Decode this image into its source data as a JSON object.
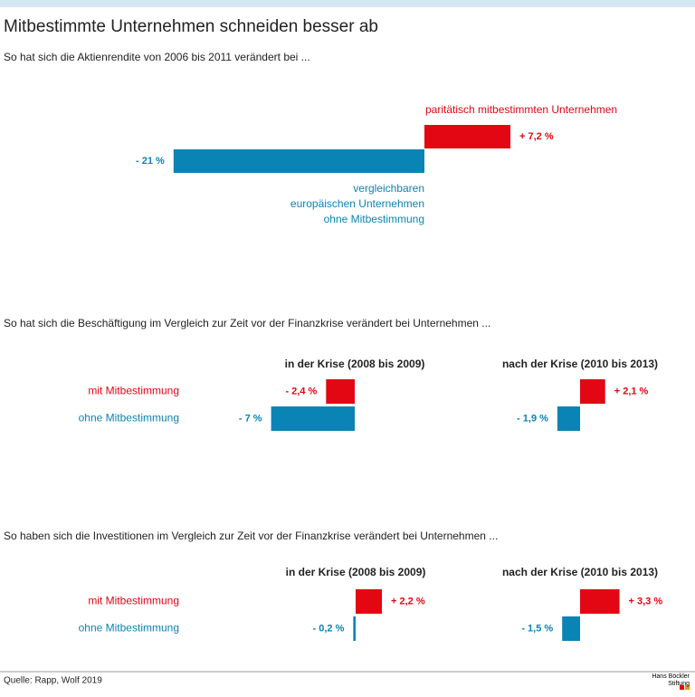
{
  "title": "Mitbestimmte Unternehmen schneiden besser ab",
  "source": "Quelle: Rapp, Wolf 2019",
  "logo": "Hans Böckler\nStiftung",
  "chart_data": [
    {
      "type": "bar",
      "subtitle": "So hat sich die Aktienrendite von 2006 bis 2011 verändert bei ...",
      "categories": [
        "paritätisch mitbestimmten Unternehmen",
        "vergleichbaren\neuropäischen Unternehmen\nohne Mitbestimmung"
      ],
      "values": [
        7.2,
        -21
      ],
      "value_labels": [
        "+ 7,2 %",
        "- 21 %"
      ],
      "colors": [
        "#e30613",
        "#0a84b4"
      ]
    },
    {
      "type": "grouped-bar",
      "subtitle": "So hat sich die Beschäftigung im Vergleich zur Zeit vor der Finanzkrise verändert bei Unternehmen ...",
      "categories": [
        "in der Krise (2008 bis 2009)",
        "nach der Krise (2010 bis 2013)"
      ],
      "series": [
        {
          "name": "mit Mitbestimmung",
          "color": "#e30613",
          "values": [
            -2.4,
            2.1
          ],
          "value_labels": [
            "- 2,4 %",
            "+ 2,1 %"
          ]
        },
        {
          "name": "ohne Mitbestimmung",
          "color": "#0a84b4",
          "values": [
            -7,
            -1.9
          ],
          "value_labels": [
            "- 7 %",
            "- 1,9 %"
          ]
        }
      ]
    },
    {
      "type": "grouped-bar",
      "subtitle": "So haben sich die Investitionen im Vergleich zur Zeit vor der Finanzkrise verändert bei Unternehmen ...",
      "categories": [
        "in der Krise (2008 bis 2009)",
        "nach der Krise (2010 bis 2013)"
      ],
      "series": [
        {
          "name": "mit Mitbestimmung",
          "color": "#e30613",
          "values": [
            2.2,
            3.3
          ],
          "value_labels": [
            "+ 2,2 %",
            "+ 3,3 %"
          ]
        },
        {
          "name": "ohne Mitbestimmung",
          "color": "#0a84b4",
          "values": [
            -0.2,
            -1.5
          ],
          "value_labels": [
            "- 0,2 %",
            "- 1,5 %"
          ]
        }
      ]
    }
  ]
}
